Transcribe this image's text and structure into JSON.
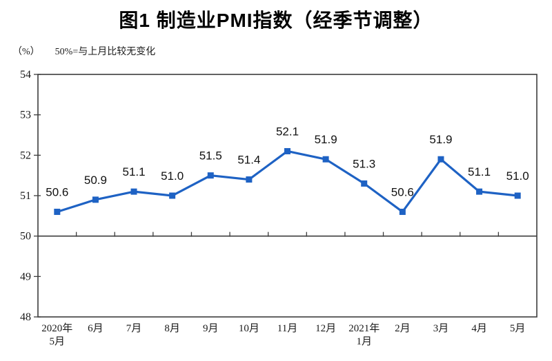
{
  "title": "图1 制造业PMI指数（经季节调整）",
  "unit_label": "（%）",
  "baseline_note": "50%=与上月比较无变化",
  "chart_data": {
    "type": "line",
    "title": "图1 制造业PMI指数（经季节调整）",
    "unit": "%",
    "note": "50%=与上月比较无变化",
    "categories": [
      "2020年\n5月",
      "6月",
      "7月",
      "8月",
      "9月",
      "10月",
      "11月",
      "12月",
      "2021年\n1月",
      "2月",
      "3月",
      "4月",
      "5月"
    ],
    "values": [
      50.6,
      50.9,
      51.1,
      51.0,
      51.5,
      51.4,
      52.1,
      51.9,
      51.3,
      50.6,
      51.9,
      51.1,
      51.0
    ],
    "data_labels": [
      "50.6",
      "50.9",
      "51.1",
      "51.0",
      "51.5",
      "51.4",
      "52.1",
      "51.9",
      "51.3",
      "50.6",
      "51.9",
      "51.1",
      "51.0"
    ],
    "ylim": [
      48,
      54
    ],
    "yticks": [
      48,
      49,
      50,
      51,
      52,
      53,
      54
    ],
    "baseline_value": 50,
    "grid": false,
    "legend": "none",
    "colors": {
      "line": "#1e62c4",
      "marker": "#1e62c4",
      "axis": "#3c3c3c",
      "text": "#1a1a1a",
      "background": "#ffffff"
    }
  }
}
